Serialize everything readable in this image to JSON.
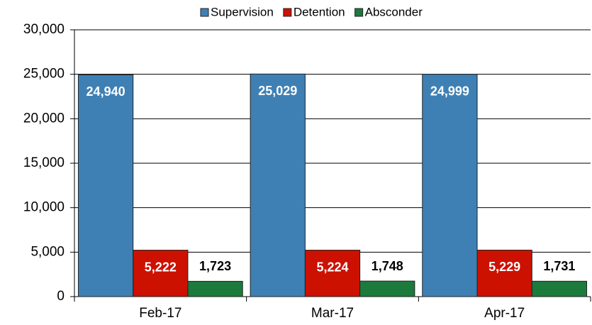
{
  "chart_data": {
    "type": "bar",
    "categories": [
      "Feb-17",
      "Mar-17",
      "Apr-17"
    ],
    "series": [
      {
        "name": "Supervision",
        "color": "#3f80b4",
        "values": [
          24940,
          25029,
          24999
        ],
        "value_labels": [
          "24,940",
          "25,029",
          "24,999"
        ]
      },
      {
        "name": "Detention",
        "color": "#cc1100",
        "values": [
          5222,
          5224,
          5229
        ],
        "value_labels": [
          "5,222",
          "5,224",
          "5,229"
        ]
      },
      {
        "name": "Absconder",
        "color": "#1b7a3c",
        "values": [
          1723,
          1748,
          1731
        ],
        "value_labels": [
          "1,723",
          "1,748",
          "1,731"
        ]
      }
    ],
    "ylim": [
      0,
      30000
    ],
    "yticks": [
      {
        "value": 0,
        "label": "0"
      },
      {
        "value": 5000,
        "label": "5,000"
      },
      {
        "value": 10000,
        "label": "10,000"
      },
      {
        "value": 15000,
        "label": "15,000"
      },
      {
        "value": 20000,
        "label": "20,000"
      },
      {
        "value": 25000,
        "label": "25,000"
      },
      {
        "value": 30000,
        "label": "30,000"
      }
    ],
    "grid": true,
    "legend": "top"
  }
}
